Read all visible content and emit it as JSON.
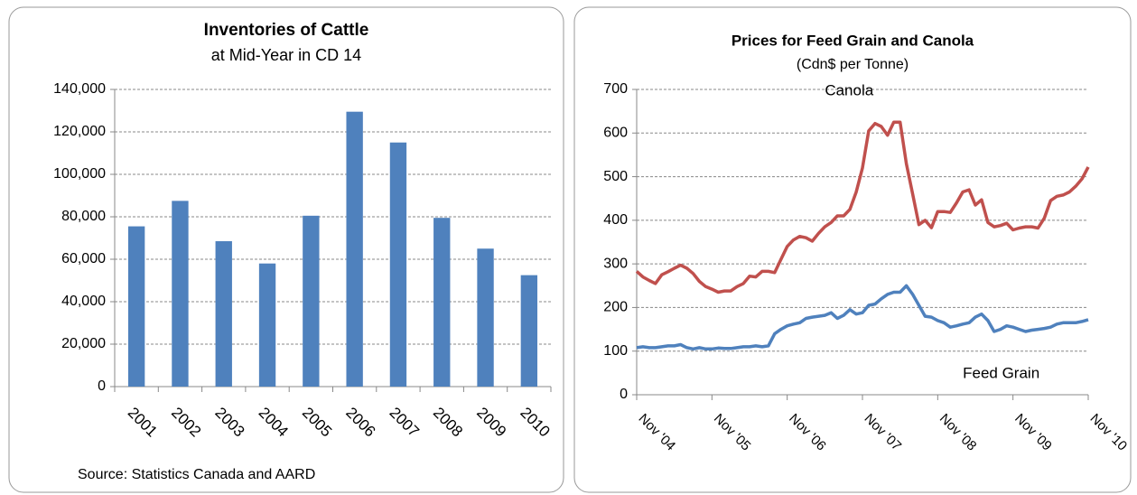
{
  "chart_data": [
    {
      "type": "bar",
      "title": "Inventories of Cattle",
      "subtitle": "at Mid-Year in CD 14",
      "source": "Source: Statistics Canada and AARD",
      "categories": [
        "2001",
        "2002",
        "2003",
        "2004",
        "2005",
        "2006",
        "2007",
        "2008",
        "2009",
        "2010"
      ],
      "values": [
        75500,
        87500,
        68500,
        58000,
        80500,
        129500,
        115000,
        79500,
        65000,
        52500
      ],
      "color": "#4f81bd",
      "ylim": [
        0,
        140000
      ],
      "yticks": [
        0,
        {
          "value": 20000,
          "label": "20,000"
        },
        {
          "value": 40000,
          "label": "40,000"
        },
        {
          "value": 60000,
          "label": "60,000"
        },
        {
          "value": 80000,
          "label": "80,000"
        },
        {
          "value": 100000,
          "label": "100,000"
        },
        {
          "value": 120000,
          "label": "120,000"
        },
        {
          "value": 140000,
          "label": "140,000"
        }
      ],
      "grid": true
    },
    {
      "type": "line",
      "title": "Prices for Feed Grain and Canola",
      "subtitle": "(Cdn$ per Tonne)",
      "categories": [
        "Nov '04",
        null,
        null,
        null,
        null,
        null,
        null,
        null,
        null,
        null,
        null,
        null,
        "Nov '05",
        null,
        null,
        null,
        null,
        null,
        null,
        null,
        null,
        null,
        null,
        null,
        "Nov '06",
        null,
        null,
        null,
        null,
        null,
        null,
        null,
        null,
        null,
        null,
        null,
        "Nov '07",
        null,
        null,
        null,
        null,
        null,
        null,
        null,
        null,
        null,
        null,
        null,
        "Nov '08",
        null,
        null,
        null,
        null,
        null,
        null,
        null,
        null,
        null,
        null,
        null,
        "Nov '09",
        null,
        null,
        null,
        null,
        null,
        null,
        null,
        null,
        null,
        null,
        null,
        "Nov '10"
      ],
      "series": [
        {
          "name": "Canola",
          "color": "#c0504d",
          "values": [
            283,
            270,
            262,
            255,
            275,
            282,
            290,
            297,
            290,
            278,
            260,
            248,
            242,
            235,
            238,
            238,
            248,
            255,
            272,
            270,
            283,
            283,
            280,
            310,
            340,
            355,
            363,
            360,
            352,
            370,
            385,
            395,
            410,
            410,
            425,
            465,
            520,
            605,
            622,
            615,
            595,
            625,
            625,
            530,
            460,
            390,
            400,
            383,
            420,
            420,
            418,
            440,
            465,
            470,
            435,
            447,
            395,
            385,
            388,
            393,
            378,
            382,
            385,
            385,
            382,
            405,
            445,
            455,
            458,
            465,
            478,
            495,
            522
          ]
        },
        {
          "name": "Feed Grain",
          "color": "#4f81bd",
          "values": [
            108,
            110,
            108,
            108,
            110,
            112,
            112,
            115,
            108,
            105,
            108,
            105,
            105,
            107,
            106,
            106,
            108,
            110,
            110,
            112,
            110,
            112,
            140,
            150,
            158,
            162,
            165,
            175,
            178,
            180,
            182,
            188,
            175,
            182,
            195,
            185,
            188,
            205,
            208,
            220,
            230,
            235,
            235,
            250,
            230,
            205,
            180,
            178,
            170,
            165,
            155,
            158,
            162,
            165,
            178,
            185,
            170,
            145,
            150,
            158,
            155,
            150,
            145,
            148,
            150,
            152,
            155,
            162,
            165,
            165,
            165,
            168,
            172
          ]
        }
      ],
      "ylim": [
        0,
        700
      ],
      "yticks": [
        0,
        100,
        200,
        300,
        400,
        500,
        600,
        700
      ],
      "grid": true
    }
  ]
}
